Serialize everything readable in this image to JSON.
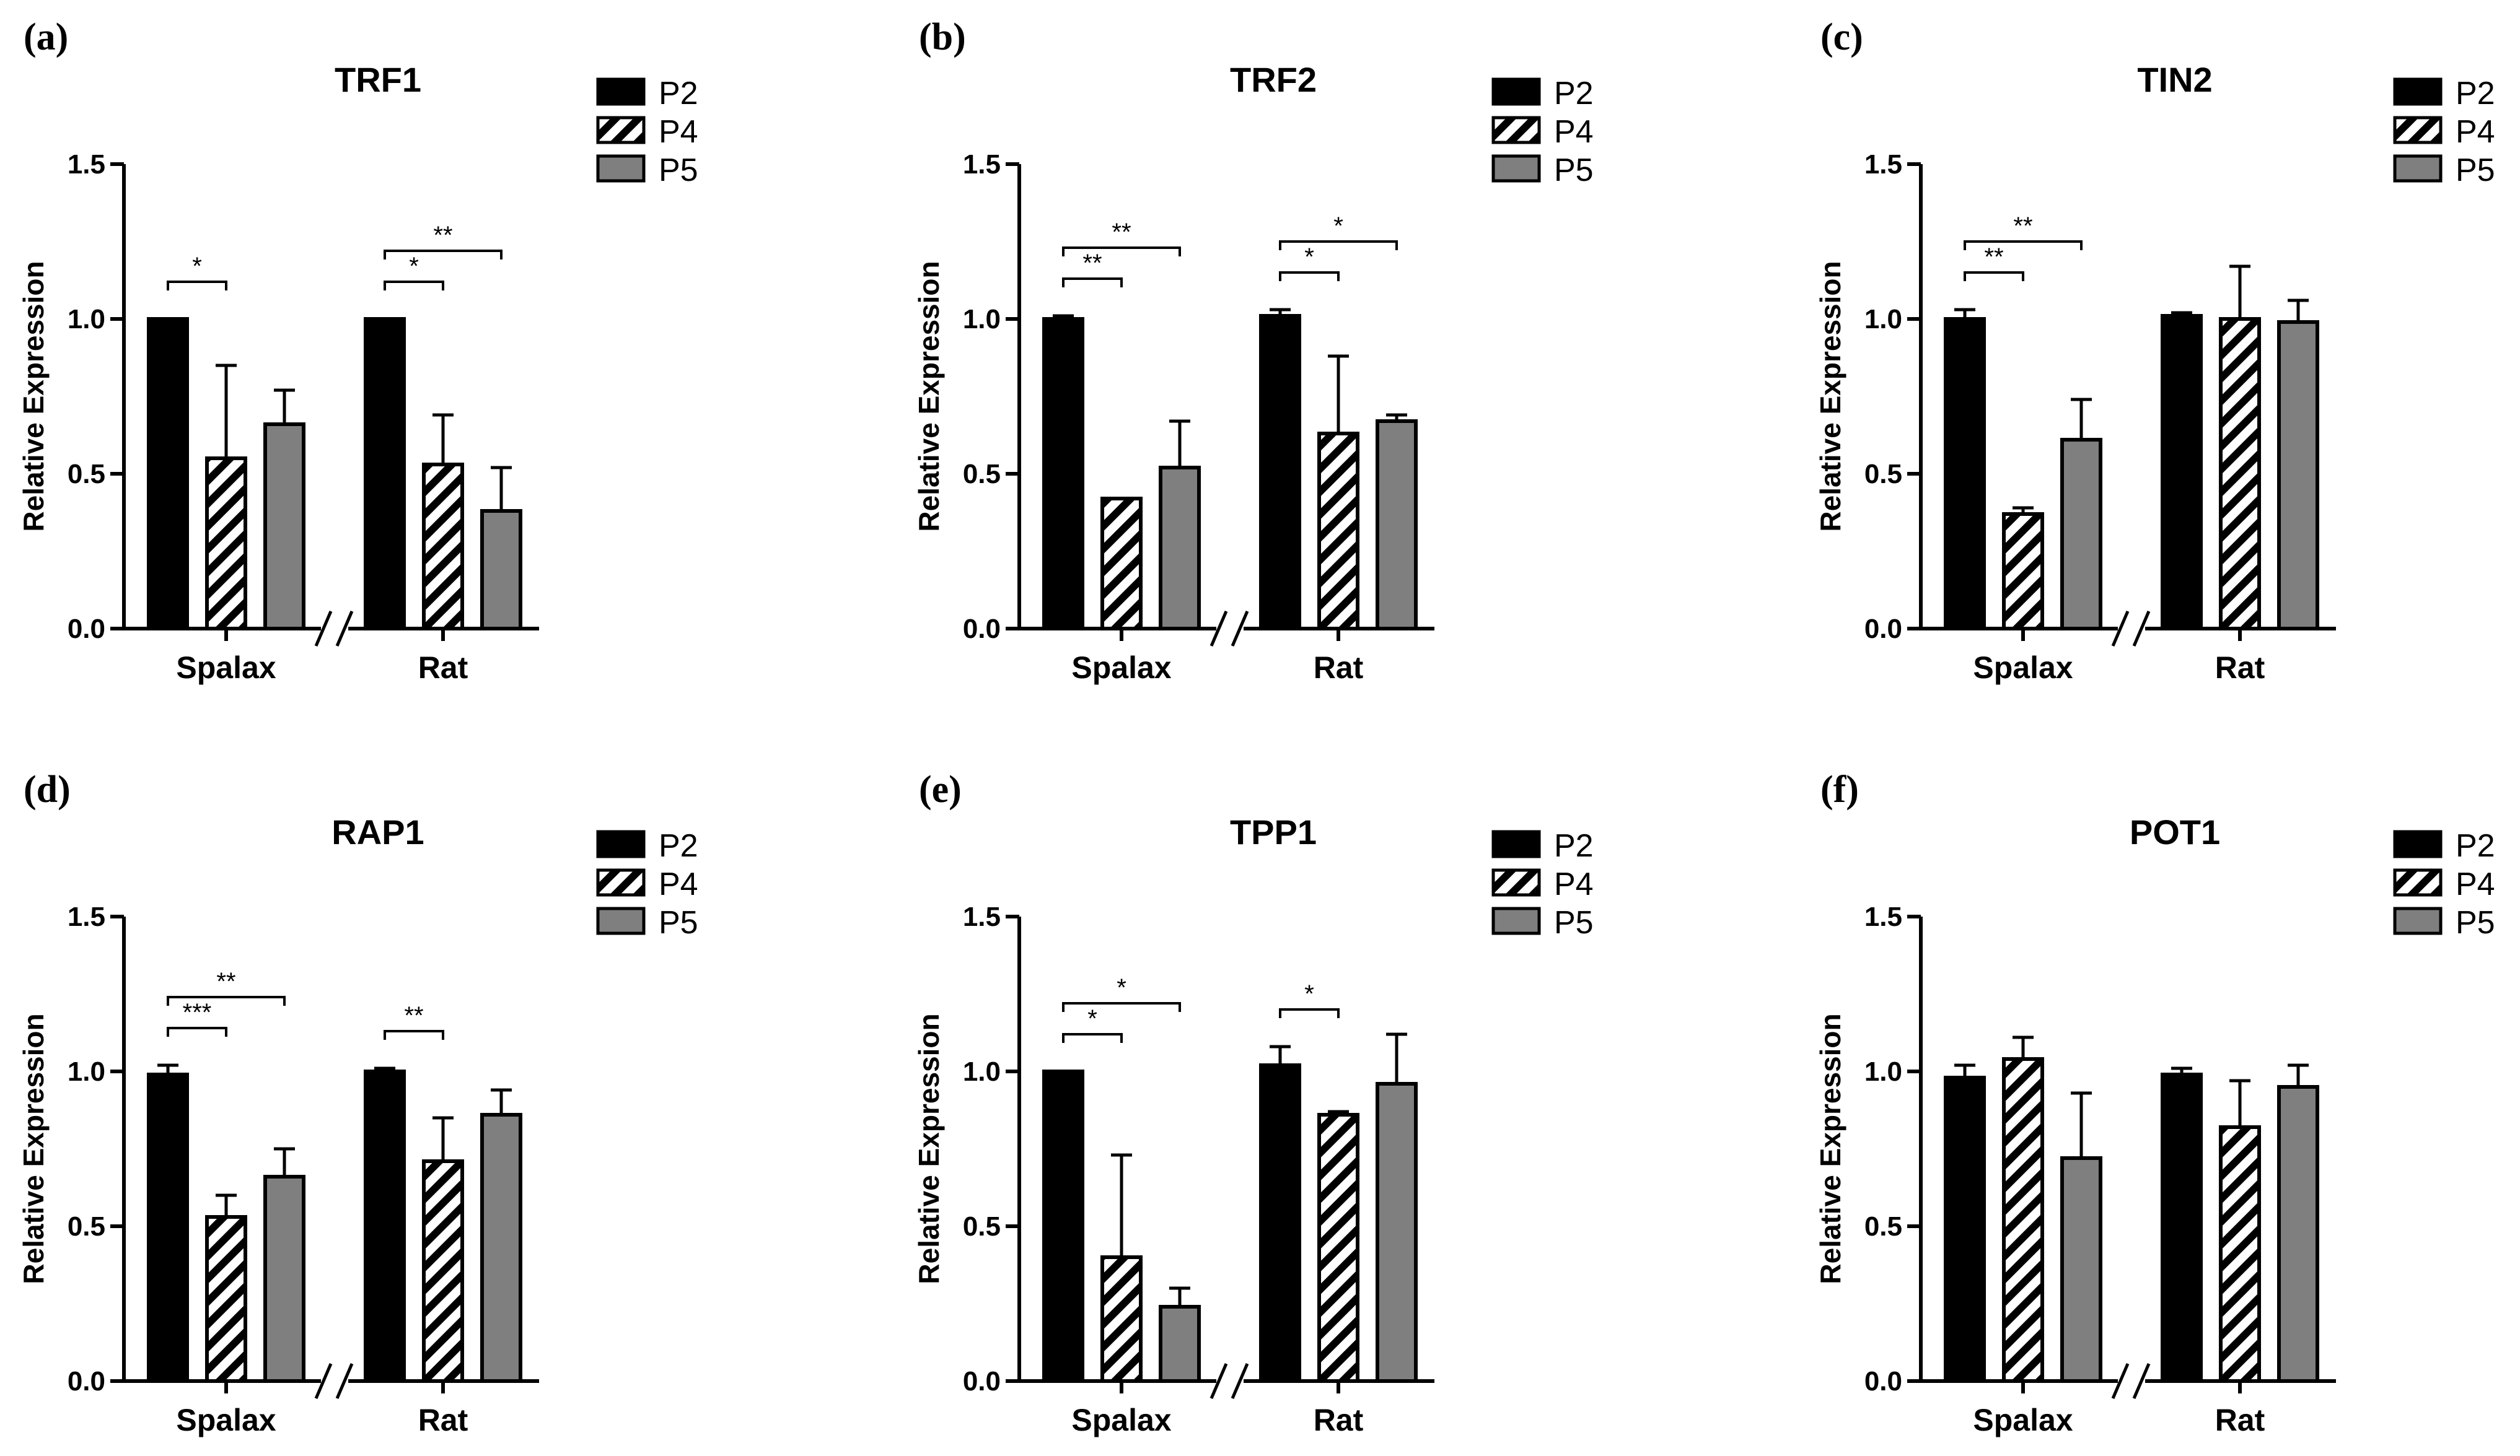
{
  "colors": {
    "P2": "#000000",
    "P4": "#ffffff",
    "P5": "#7f7f7f",
    "axis": "#000000"
  },
  "chart_data": [
    {
      "panel": "(a)",
      "type": "bar",
      "title": "TRF1",
      "ylabel": "Relative Expression",
      "ylim": [
        0,
        1.5
      ],
      "yticks": [
        "0.0",
        "0.5",
        "1.0",
        "1.5"
      ],
      "groups": [
        "Spalax",
        "Rat"
      ],
      "legend": [
        "P2",
        "P4",
        "P5"
      ],
      "series": [
        {
          "name": "P2",
          "values": [
            1.0,
            1.0
          ],
          "errors": [
            0.0,
            0.0
          ]
        },
        {
          "name": "P4",
          "values": [
            0.55,
            0.53
          ],
          "errors": [
            0.3,
            0.16
          ]
        },
        {
          "name": "P5",
          "values": [
            0.66,
            0.38
          ],
          "errors": [
            0.11,
            0.14
          ]
        }
      ],
      "significance": [
        {
          "group": 0,
          "from": 0,
          "to": 1,
          "label": "*",
          "level": 0
        },
        {
          "group": 1,
          "from": 0,
          "to": 1,
          "label": "*",
          "level": 0
        },
        {
          "group": 1,
          "from": 0,
          "to": 2,
          "label": "**",
          "level": 1
        }
      ]
    },
    {
      "panel": "(b)",
      "type": "bar",
      "title": "TRF2",
      "ylabel": "Relative Expression",
      "ylim": [
        0,
        1.5
      ],
      "yticks": [
        "0.0",
        "0.5",
        "1.0",
        "1.5"
      ],
      "groups": [
        "Spalax",
        "Rat"
      ],
      "legend": [
        "P2",
        "P4",
        "P5"
      ],
      "series": [
        {
          "name": "P2",
          "values": [
            1.0,
            1.01
          ],
          "errors": [
            0.01,
            0.02
          ]
        },
        {
          "name": "P4",
          "values": [
            0.42,
            0.63
          ],
          "errors": [
            0.0,
            0.25
          ]
        },
        {
          "name": "P5",
          "values": [
            0.52,
            0.67
          ],
          "errors": [
            0.15,
            0.02
          ]
        }
      ],
      "significance": [
        {
          "group": 0,
          "from": 0,
          "to": 1,
          "label": "**",
          "level": 0
        },
        {
          "group": 0,
          "from": 0,
          "to": 2,
          "label": "**",
          "level": 1
        },
        {
          "group": 1,
          "from": 0,
          "to": 1,
          "label": "*",
          "level": 0
        },
        {
          "group": 1,
          "from": 0,
          "to": 2,
          "label": "*",
          "level": 1
        }
      ]
    },
    {
      "panel": "(c)",
      "type": "bar",
      "title": "TIN2",
      "ylabel": "Relative Expression",
      "ylim": [
        0,
        1.5
      ],
      "yticks": [
        "0.0",
        "0.5",
        "1.0",
        "1.5"
      ],
      "groups": [
        "Spalax",
        "Rat"
      ],
      "legend": [
        "P2",
        "P4",
        "P5"
      ],
      "series": [
        {
          "name": "P2",
          "values": [
            1.0,
            1.01
          ],
          "errors": [
            0.03,
            0.01
          ]
        },
        {
          "name": "P4",
          "values": [
            0.37,
            1.0
          ],
          "errors": [
            0.02,
            0.17
          ]
        },
        {
          "name": "P5",
          "values": [
            0.61,
            0.99
          ],
          "errors": [
            0.13,
            0.07
          ]
        }
      ],
      "significance": [
        {
          "group": 0,
          "from": 0,
          "to": 1,
          "label": "**",
          "level": 0
        },
        {
          "group": 0,
          "from": 0,
          "to": 2,
          "label": "**",
          "level": 1
        }
      ]
    },
    {
      "panel": "(d)",
      "type": "bar",
      "title": "RAP1",
      "ylabel": "Relative Expression",
      "ylim": [
        0,
        1.5
      ],
      "yticks": [
        "0.0",
        "0.5",
        "1.0",
        "1.5"
      ],
      "groups": [
        "Spalax",
        "Rat"
      ],
      "legend": [
        "P2",
        "P4",
        "P5"
      ],
      "series": [
        {
          "name": "P2",
          "values": [
            0.99,
            1.0
          ],
          "errors": [
            0.03,
            0.01
          ]
        },
        {
          "name": "P4",
          "values": [
            0.53,
            0.71
          ],
          "errors": [
            0.07,
            0.14
          ]
        },
        {
          "name": "P5",
          "values": [
            0.66,
            0.86
          ],
          "errors": [
            0.09,
            0.08
          ]
        }
      ],
      "significance": [
        {
          "group": 0,
          "from": 0,
          "to": 1,
          "label": "***",
          "level": 0
        },
        {
          "group": 0,
          "from": 0,
          "to": 2,
          "label": "**",
          "level": 1
        },
        {
          "group": 1,
          "from": 0,
          "to": 1,
          "label": "**",
          "level": 0
        }
      ]
    },
    {
      "panel": "(e)",
      "type": "bar",
      "title": "TPP1",
      "ylabel": "Relative Expression",
      "ylim": [
        0,
        1.5
      ],
      "yticks": [
        "0.0",
        "0.5",
        "1.0",
        "1.5"
      ],
      "groups": [
        "Spalax",
        "Rat"
      ],
      "legend": [
        "P2",
        "P4",
        "P5"
      ],
      "series": [
        {
          "name": "P2",
          "values": [
            1.0,
            1.02
          ],
          "errors": [
            0.0,
            0.06
          ]
        },
        {
          "name": "P4",
          "values": [
            0.4,
            0.86
          ],
          "errors": [
            0.33,
            0.01
          ]
        },
        {
          "name": "P5",
          "values": [
            0.24,
            0.96
          ],
          "errors": [
            0.06,
            0.16
          ]
        }
      ],
      "significance": [
        {
          "group": 0,
          "from": 0,
          "to": 1,
          "label": "*",
          "level": 0
        },
        {
          "group": 0,
          "from": 0,
          "to": 2,
          "label": "*",
          "level": 1
        },
        {
          "group": 1,
          "from": 0,
          "to": 1,
          "label": "*",
          "level": 0
        }
      ]
    },
    {
      "panel": "(f)",
      "type": "bar",
      "title": "POT1",
      "ylabel": "Relative Expression",
      "ylim": [
        0,
        1.5
      ],
      "yticks": [
        "0.0",
        "0.5",
        "1.0",
        "1.5"
      ],
      "groups": [
        "Spalax",
        "Rat"
      ],
      "legend": [
        "P2",
        "P4",
        "P5"
      ],
      "series": [
        {
          "name": "P2",
          "values": [
            0.98,
            0.99
          ],
          "errors": [
            0.04,
            0.02
          ]
        },
        {
          "name": "P4",
          "values": [
            1.04,
            0.82
          ],
          "errors": [
            0.07,
            0.15
          ]
        },
        {
          "name": "P5",
          "values": [
            0.72,
            0.95
          ],
          "errors": [
            0.21,
            0.07
          ]
        }
      ],
      "significance": []
    }
  ]
}
